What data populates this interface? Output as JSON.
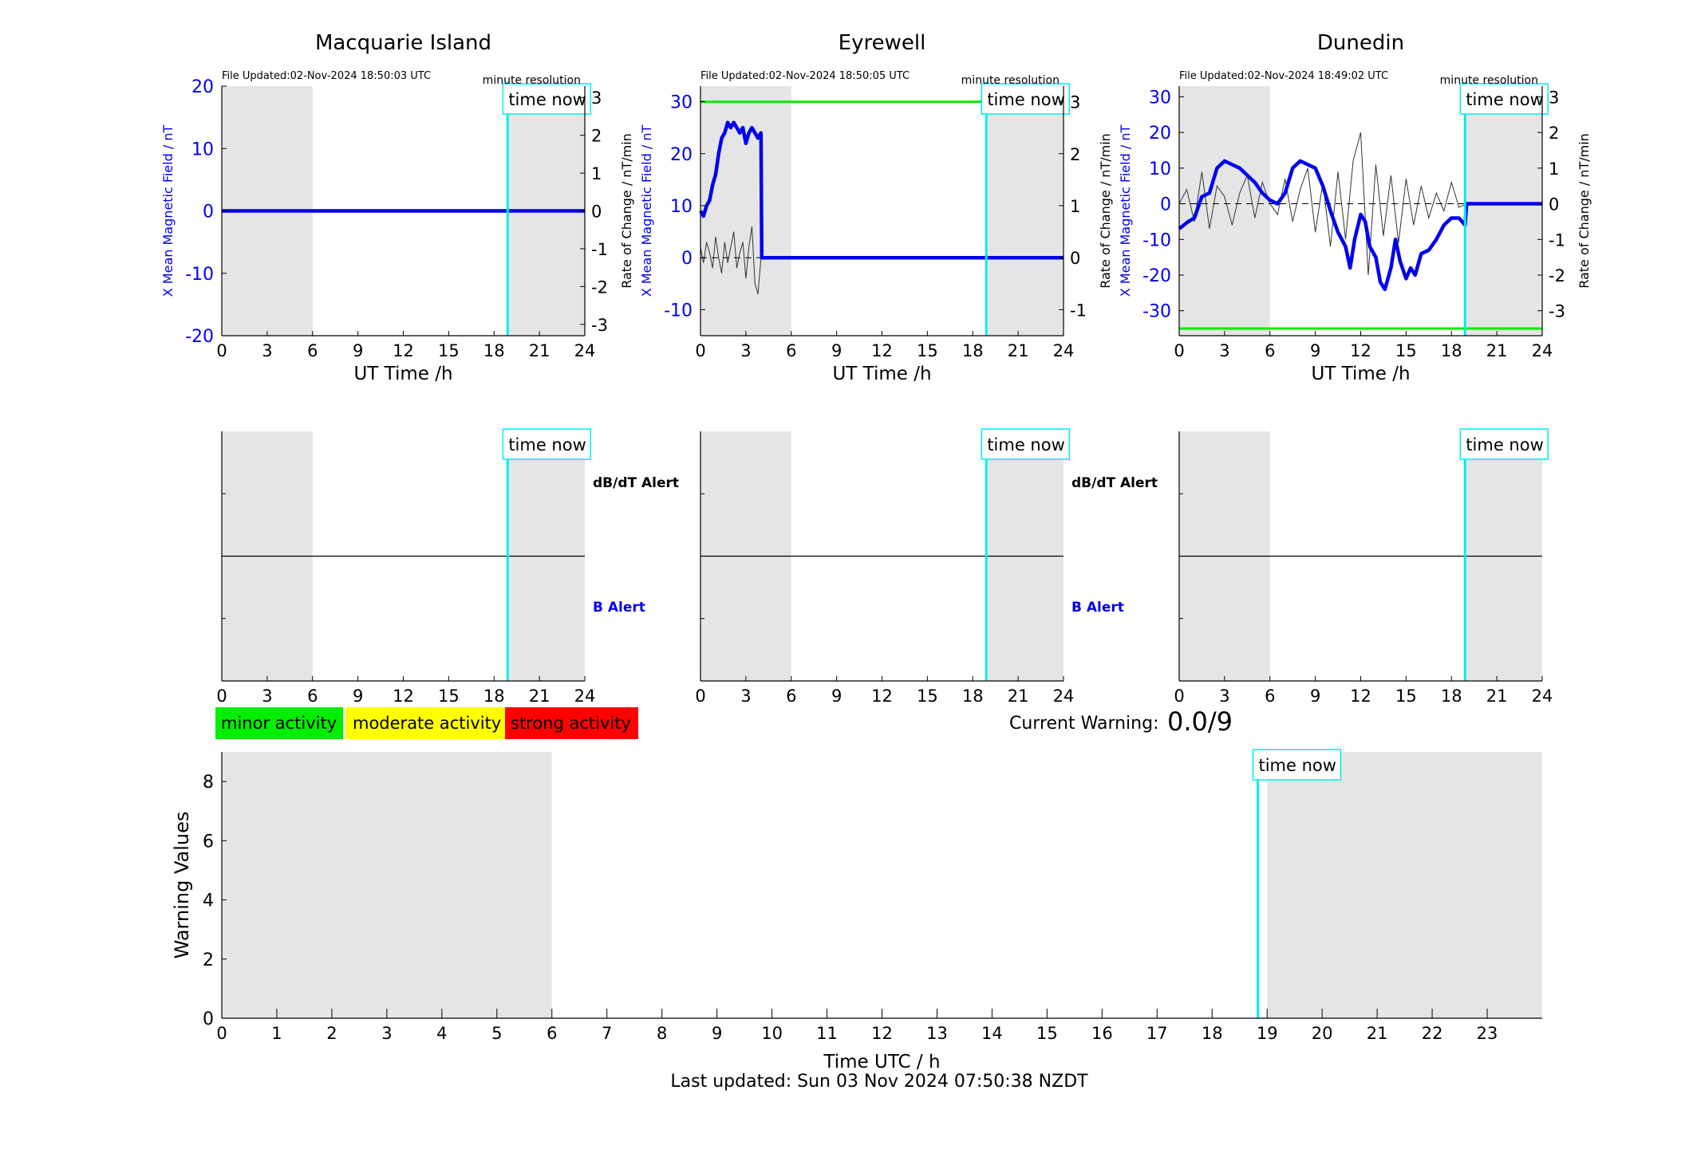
{
  "colors": {
    "background": "#ffffff",
    "night_shade": "#e5e5e5",
    "x_field": "#0000ee",
    "rate": "#333333",
    "threshold": "#00ee00",
    "time_now": "#00eeee",
    "minor": "#00ee00",
    "moderate": "#ffff00",
    "strong": "#ff0000"
  },
  "footer": {
    "last_updated": "Last updated: Sun 03 Nov 2024 07:50:38 NZDT"
  },
  "warning": {
    "label": "Current Warning:",
    "value": "0.0/9"
  },
  "legend": {
    "minor": "minor activity",
    "moderate": "moderate activity",
    "strong": "strong activity"
  },
  "time_now_label": "time now",
  "chart_data": [
    {
      "type": "line",
      "title": "Macquarie Island",
      "file_updated": "File Updated:02-Nov-2024 18:50:03 UTC",
      "resolution": "minute resolution",
      "xlabel": "UT Time /h",
      "ylabel_left": "X Mean Magnetic Field / nT",
      "ylabel_right": "Rate of Change / nT/min",
      "xlim": [
        0,
        24
      ],
      "xticks": [
        0,
        3,
        6,
        9,
        12,
        15,
        18,
        21,
        24
      ],
      "ylim_left": [
        -20,
        20
      ],
      "yticks_left": [
        -20,
        -10,
        0,
        10,
        20
      ],
      "ylim_right": [
        -3.3,
        3.3
      ],
      "yticks_right": [
        -3,
        -2,
        -1,
        0,
        1,
        2,
        3
      ],
      "shaded_intervals": [
        [
          0,
          6
        ],
        [
          19,
          24
        ]
      ],
      "time_now": 18.9,
      "threshold": null,
      "series": [
        {
          "axis": "left",
          "color": "#0000ee",
          "x": [
            0,
            24
          ],
          "y": [
            0,
            0
          ]
        }
      ],
      "rate_series": []
    },
    {
      "type": "line",
      "title": "Eyrewell",
      "file_updated": "File Updated:02-Nov-2024 18:50:05 UTC",
      "resolution": "minute resolution",
      "xlabel": "UT Time /h",
      "ylabel_left": "X Mean Magnetic Field / nT",
      "ylabel_right": "Rate of Change / nT/min",
      "xlim": [
        0,
        24
      ],
      "xticks": [
        0,
        3,
        6,
        9,
        12,
        15,
        18,
        21,
        24
      ],
      "ylim_left": [
        -15,
        33
      ],
      "yticks_left": [
        -10,
        0,
        10,
        20,
        30
      ],
      "ylim_right": [
        -1.5,
        3.3
      ],
      "yticks_right": [
        -1,
        0,
        1,
        2,
        3
      ],
      "shaded_intervals": [
        [
          0,
          6
        ],
        [
          19,
          24
        ]
      ],
      "time_now": 18.9,
      "threshold": 30,
      "series": [
        {
          "axis": "left",
          "color": "#0000ee",
          "x": [
            0,
            0.2,
            0.4,
            0.6,
            0.8,
            1.0,
            1.2,
            1.4,
            1.6,
            1.8,
            2.0,
            2.2,
            2.4,
            2.6,
            2.8,
            3.0,
            3.2,
            3.4,
            3.6,
            3.8,
            4.0,
            4.05,
            4.2,
            6,
            10,
            14,
            18,
            19,
            24
          ],
          "y": [
            9,
            8,
            10,
            11,
            14,
            16,
            20,
            23,
            24,
            26,
            25,
            26,
            25,
            24,
            25,
            22,
            24,
            25,
            24,
            23,
            24,
            0,
            0,
            0,
            0,
            0,
            0,
            0,
            0
          ]
        }
      ],
      "rate_series": [
        {
          "axis": "right",
          "color": "#333333",
          "x": [
            0,
            0.2,
            0.4,
            0.6,
            0.8,
            1.0,
            1.2,
            1.4,
            1.6,
            1.8,
            2.0,
            2.2,
            2.4,
            2.6,
            2.8,
            3.0,
            3.2,
            3.4,
            3.6,
            3.8,
            4.0
          ],
          "y": [
            0.2,
            -0.1,
            0.3,
            0.1,
            -0.2,
            0.4,
            0.0,
            -0.3,
            0.3,
            -0.1,
            0.2,
            0.5,
            -0.2,
            0.1,
            0.3,
            -0.4,
            0.2,
            0.6,
            -0.5,
            -0.7,
            0.0
          ]
        }
      ]
    },
    {
      "type": "line",
      "title": "Dunedin",
      "file_updated": "File Updated:02-Nov-2024 18:49:02 UTC",
      "resolution": "minute resolution",
      "xlabel": "UT Time /h",
      "ylabel_left": "X Mean Magnetic Field / nT",
      "ylabel_right": "Rate of Change / nT/min",
      "xlim": [
        0,
        24
      ],
      "xticks": [
        0,
        3,
        6,
        9,
        12,
        15,
        18,
        21,
        24
      ],
      "ylim_left": [
        -37,
        33
      ],
      "yticks_left": [
        -30,
        -20,
        -10,
        0,
        10,
        20,
        30
      ],
      "ylim_right": [
        -3.7,
        3.3
      ],
      "yticks_right": [
        -3,
        -2,
        -1,
        0,
        1,
        2,
        3
      ],
      "shaded_intervals": [
        [
          0,
          6
        ],
        [
          19,
          24
        ]
      ],
      "time_now": 18.9,
      "threshold": -35,
      "series": [
        {
          "axis": "left",
          "color": "#0000ee",
          "x": [
            0,
            0.3,
            0.6,
            1.0,
            1.5,
            2.0,
            2.5,
            3.0,
            3.5,
            4.0,
            4.5,
            5.0,
            5.5,
            6.0,
            6.5,
            7.0,
            7.5,
            8.0,
            8.5,
            9.0,
            9.5,
            10.0,
            10.5,
            11.0,
            11.3,
            11.6,
            12.0,
            12.3,
            12.6,
            13.0,
            13.3,
            13.6,
            14.0,
            14.3,
            14.6,
            15.0,
            15.3,
            15.6,
            16.0,
            16.5,
            17.0,
            17.5,
            18.0,
            18.5,
            18.9,
            19.0,
            24
          ],
          "y": [
            -7,
            -6,
            -5,
            -4,
            2,
            3,
            10,
            12,
            11,
            10,
            8,
            6,
            3,
            1,
            0,
            3,
            10,
            12,
            11,
            10,
            5,
            -2,
            -8,
            -12,
            -18,
            -10,
            -3,
            -5,
            -12,
            -15,
            -22,
            -24,
            -18,
            -10,
            -16,
            -21,
            -18,
            -20,
            -14,
            -13,
            -10,
            -6,
            -4,
            -4,
            -6,
            0,
            0
          ]
        }
      ],
      "rate_series": [
        {
          "axis": "right",
          "color": "#333333",
          "x": [
            0,
            0.5,
            1.0,
            1.5,
            2.0,
            2.5,
            3.0,
            3.5,
            4.0,
            4.5,
            5.0,
            5.5,
            6.0,
            6.5,
            7.0,
            7.5,
            8.0,
            8.5,
            9.0,
            9.5,
            10.0,
            10.5,
            11.0,
            11.5,
            12.0,
            12.5,
            13.0,
            13.5,
            14.0,
            14.5,
            15.0,
            15.5,
            16.0,
            16.5,
            17.0,
            17.5,
            18.0,
            18.5,
            19.0
          ],
          "y": [
            0.0,
            0.4,
            -0.5,
            0.9,
            -0.7,
            0.5,
            0.2,
            -0.6,
            0.3,
            0.8,
            -0.4,
            0.6,
            0.0,
            -0.3,
            0.7,
            -0.5,
            0.4,
            1.0,
            -0.8,
            0.6,
            -1.2,
            0.9,
            -1.0,
            1.2,
            2.0,
            -2.0,
            1.1,
            -0.9,
            0.8,
            -1.1,
            0.7,
            -0.6,
            0.5,
            -0.4,
            0.3,
            -0.2,
            0.6,
            -0.1,
            0.0
          ]
        }
      ]
    },
    {
      "type": "line",
      "alert_labels": [
        "dB/dT Alert",
        "B Alert"
      ],
      "xlim": [
        0,
        24
      ],
      "xticks": [
        0,
        3,
        6,
        9,
        12,
        15,
        18,
        21,
        24
      ],
      "shaded_intervals": [
        [
          0,
          6
        ],
        [
          19,
          24
        ]
      ],
      "time_now": 18.9
    },
    {
      "type": "line",
      "alert_labels": [
        "dB/dT Alert",
        "B Alert"
      ],
      "xlim": [
        0,
        24
      ],
      "xticks": [
        0,
        3,
        6,
        9,
        12,
        15,
        18,
        21,
        24
      ],
      "shaded_intervals": [
        [
          0,
          6
        ],
        [
          19,
          24
        ]
      ],
      "time_now": 18.9
    },
    {
      "type": "line",
      "alert_labels": [],
      "xlim": [
        0,
        24
      ],
      "xticks": [
        0,
        3,
        6,
        9,
        12,
        15,
        18,
        21,
        24
      ],
      "shaded_intervals": [
        [
          0,
          6
        ],
        [
          19,
          24
        ]
      ],
      "time_now": 18.9
    },
    {
      "type": "bar",
      "xlabel": "Time UTC / h",
      "ylabel": "Warning Values",
      "xlim": [
        0,
        24
      ],
      "xticks": [
        0,
        1,
        2,
        3,
        4,
        5,
        6,
        7,
        8,
        9,
        10,
        11,
        12,
        13,
        14,
        15,
        16,
        17,
        18,
        19,
        20,
        21,
        22,
        23
      ],
      "ylim": [
        0,
        9
      ],
      "yticks": [
        0,
        2,
        4,
        6,
        8
      ],
      "shaded_intervals": [
        [
          0,
          6
        ],
        [
          19,
          24
        ]
      ],
      "time_now": 18.83,
      "values": []
    }
  ]
}
